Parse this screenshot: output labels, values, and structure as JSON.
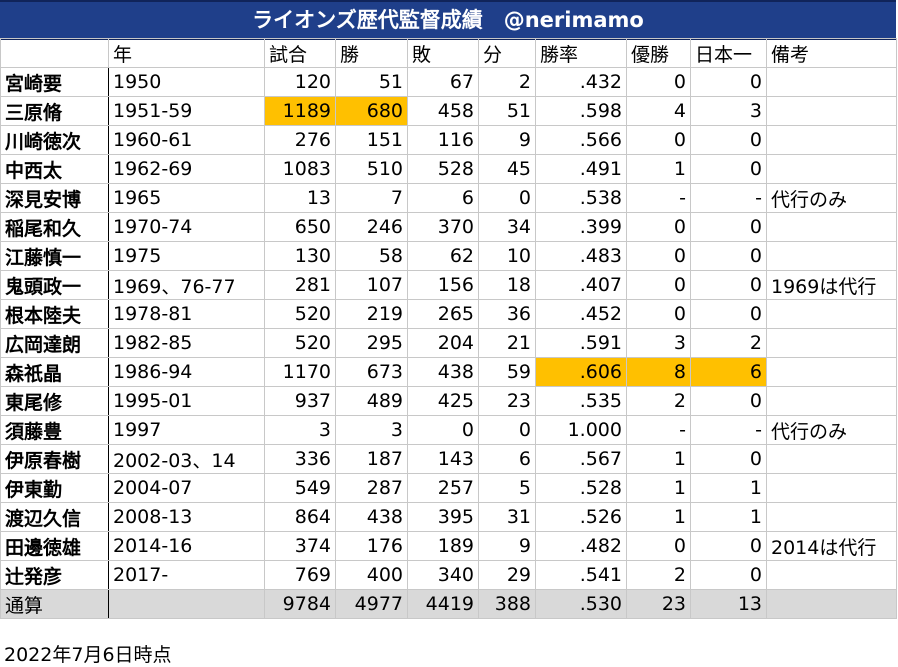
{
  "title": "ライオンズ歴代監督成績　@nerimamo",
  "headers": [
    "",
    "年",
    "試合",
    "勝",
    "敗",
    "分",
    "勝率",
    "優勝",
    "日本一",
    "備考"
  ],
  "rows": [
    [
      "宮崎要",
      "1950",
      "120",
      "51",
      "67",
      "2",
      ".432",
      "0",
      "0",
      ""
    ],
    [
      "三原脩",
      "1951-59",
      "1189",
      "680",
      "458",
      "51",
      ".598",
      "4",
      "3",
      ""
    ],
    [
      "川崎徳次",
      "1960-61",
      "276",
      "151",
      "116",
      "9",
      ".566",
      "0",
      "0",
      ""
    ],
    [
      "中西太",
      "1962-69",
      "1083",
      "510",
      "528",
      "45",
      ".491",
      "1",
      "0",
      ""
    ],
    [
      "深見安博",
      "1965",
      "13",
      "7",
      "6",
      "0",
      ".538",
      "-",
      "-",
      "代行のみ"
    ],
    [
      "稲尾和久",
      "1970-74",
      "650",
      "246",
      "370",
      "34",
      ".399",
      "0",
      "0",
      ""
    ],
    [
      "江藤慎一",
      "1975",
      "130",
      "58",
      "62",
      "10",
      ".483",
      "0",
      "0",
      ""
    ],
    [
      "鬼頭政一",
      "1969、76-77",
      "281",
      "107",
      "156",
      "18",
      ".407",
      "0",
      "0",
      "1969は代行"
    ],
    [
      "根本陸夫",
      "1978-81",
      "520",
      "219",
      "265",
      "36",
      ".452",
      "0",
      "0",
      ""
    ],
    [
      "広岡達朗",
      "1982-85",
      "520",
      "295",
      "204",
      "21",
      ".591",
      "3",
      "2",
      ""
    ],
    [
      "森祇晶",
      "1986-94",
      "1170",
      "673",
      "438",
      "59",
      ".606",
      "8",
      "6",
      ""
    ],
    [
      "東尾修",
      "1995-01",
      "937",
      "489",
      "425",
      "23",
      ".535",
      "2",
      "0",
      ""
    ],
    [
      "須藤豊",
      "1997",
      "3",
      "3",
      "0",
      "0",
      "1.000",
      "-",
      "-",
      "代行のみ"
    ],
    [
      "伊原春樹",
      "2002-03、14",
      "336",
      "187",
      "143",
      "6",
      ".567",
      "1",
      "0",
      ""
    ],
    [
      "伊東勤",
      "2004-07",
      "549",
      "287",
      "257",
      "5",
      ".528",
      "1",
      "1",
      ""
    ],
    [
      "渡辺久信",
      "2008-13",
      "864",
      "438",
      "395",
      "31",
      ".526",
      "1",
      "1",
      ""
    ],
    [
      "田邊徳雄",
      "2014-16",
      "374",
      "176",
      "189",
      "9",
      ".482",
      "0",
      "0",
      "2014は代行"
    ],
    [
      "辻発彦",
      "2017-",
      "769",
      "400",
      "340",
      "29",
      ".541",
      "2",
      "0",
      ""
    ]
  ],
  "total": [
    "通算",
    "",
    "9784",
    "4977",
    "4419",
    "388",
    ".530",
    "23",
    "13",
    ""
  ],
  "highlights": [
    [
      1,
      2
    ],
    [
      1,
      3
    ],
    [
      10,
      6
    ],
    [
      10,
      7
    ],
    [
      10,
      8
    ]
  ],
  "highlight_color": "#ffc000",
  "title_color": "#1f3f8a",
  "footnote": "2022年7月6日時点"
}
